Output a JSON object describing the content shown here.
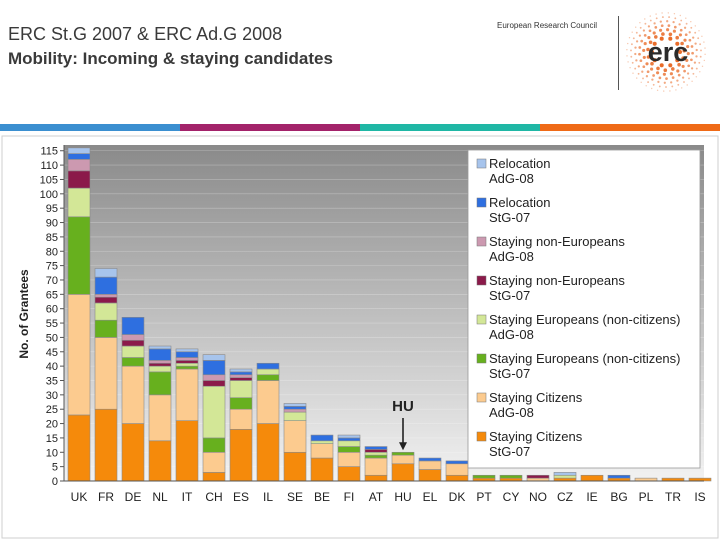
{
  "header": {
    "title": "ERC St.G 2007 & ERC Ad.G 2008",
    "subtitle": "Mobility: Incoming & staying candidates",
    "org_name": "European Research Council",
    "logo_text": "erc"
  },
  "colors": {
    "stripes": [
      "#3b8fd0",
      "#a3236a",
      "#1fb7a5",
      "#ef6a17"
    ],
    "plot_bg_top": "#8a8a8a",
    "plot_bg_bottom": "#f2f2f2",
    "logo_orange": "#e8641e",
    "logo_text": "#2b2b2b"
  },
  "chart_data": {
    "type": "stacked-bar",
    "title": "",
    "xlabel": "",
    "ylabel": "No. of Grantees",
    "ylim": [
      0,
      117
    ],
    "yticks": [
      0,
      5,
      10,
      15,
      20,
      25,
      30,
      35,
      40,
      45,
      50,
      55,
      60,
      65,
      70,
      75,
      80,
      85,
      90,
      95,
      100,
      105,
      110,
      115
    ],
    "categories": [
      "UK",
      "FR",
      "DE",
      "NL",
      "IT",
      "CH",
      "ES",
      "IL",
      "SE",
      "BE",
      "FI",
      "AT",
      "HU",
      "EL",
      "DK",
      "PT",
      "CY",
      "NO",
      "CZ",
      "IE",
      "BG",
      "PL",
      "TR",
      "IS"
    ],
    "annotation": {
      "text": "HU",
      "category": "HU"
    },
    "series": [
      {
        "name": "Staying Citizens StG-07",
        "color": "#f58a0b",
        "values": [
          23,
          25,
          20,
          14,
          21,
          3,
          18,
          20,
          10,
          8,
          5,
          2,
          6,
          4,
          2,
          1,
          1,
          0,
          1,
          2,
          1,
          0,
          1,
          1
        ]
      },
      {
        "name": "Staying Citizens AdG-08",
        "color": "#fccb8f",
        "values": [
          42,
          25,
          20,
          16,
          18,
          7,
          7,
          15,
          11,
          5,
          5,
          6,
          3,
          3,
          4,
          0,
          0,
          1,
          0,
          0,
          0,
          1,
          0,
          0
        ]
      },
      {
        "name": "Staying Europeans (non-citizens) StG-07",
        "color": "#67b01e",
        "values": [
          27,
          6,
          3,
          8,
          1,
          5,
          4,
          2,
          0,
          0,
          2,
          1,
          1,
          0,
          0,
          1,
          1,
          0,
          0,
          0,
          0,
          0,
          0,
          0
        ]
      },
      {
        "name": "Staying Europeans (non-citizens) AdG-08",
        "color": "#d3e797",
        "values": [
          10,
          6,
          4,
          2,
          1,
          18,
          6,
          2,
          3,
          1,
          2,
          1,
          0,
          0,
          0,
          0,
          0,
          0,
          1,
          0,
          0,
          0,
          0,
          0
        ]
      },
      {
        "name": "Staying non-Europeans StG-07",
        "color": "#8b1a4a",
        "values": [
          6,
          2,
          2,
          1,
          1,
          2,
          1,
          0,
          0,
          0,
          0,
          1,
          0,
          0,
          0,
          0,
          0,
          1,
          0,
          0,
          0,
          0,
          0,
          0
        ]
      },
      {
        "name": "Staying non-Europeans AdG-08",
        "color": "#cc99b0",
        "values": [
          4,
          1,
          2,
          1,
          1,
          2,
          1,
          0,
          1,
          0,
          0,
          0,
          0,
          0,
          0,
          0,
          0,
          0,
          0,
          0,
          0,
          0,
          0,
          0
        ]
      },
      {
        "name": "Relocation StG-07",
        "color": "#2e6fe0",
        "values": [
          2,
          6,
          6,
          4,
          2,
          5,
          1,
          2,
          1,
          2,
          1,
          1,
          0,
          1,
          1,
          0,
          0,
          0,
          0,
          0,
          1,
          0,
          0,
          0
        ]
      },
      {
        "name": "Relocation AdG-08",
        "color": "#a7c4ec",
        "values": [
          2,
          3,
          0,
          1,
          1,
          2,
          1,
          0,
          1,
          0,
          1,
          0,
          0,
          0,
          0,
          0,
          0,
          0,
          1,
          0,
          0,
          0,
          0,
          0
        ]
      }
    ],
    "legend": {
      "position": "right",
      "entries": [
        {
          "line1": "Relocation",
          "line2": "AdG-08",
          "color": "#a7c4ec"
        },
        {
          "line1": "Relocation",
          "line2": "StG-07",
          "color": "#2e6fe0"
        },
        {
          "line1": "Staying non-Europeans",
          "line2": "AdG-08",
          "color": "#cc99b0"
        },
        {
          "line1": "Staying non-Europeans",
          "line2": "StG-07",
          "color": "#8b1a4a"
        },
        {
          "line1": "Staying Europeans (non-citizens)",
          "line2": "AdG-08",
          "color": "#d3e797"
        },
        {
          "line1": "Staying Europeans (non-citizens)",
          "line2": "StG-07",
          "color": "#67b01e"
        },
        {
          "line1": "Staying Citizens",
          "line2": "AdG-08",
          "color": "#fccb8f"
        },
        {
          "line1": "Staying Citizens",
          "line2": "StG-07",
          "color": "#f58a0b"
        }
      ]
    }
  }
}
